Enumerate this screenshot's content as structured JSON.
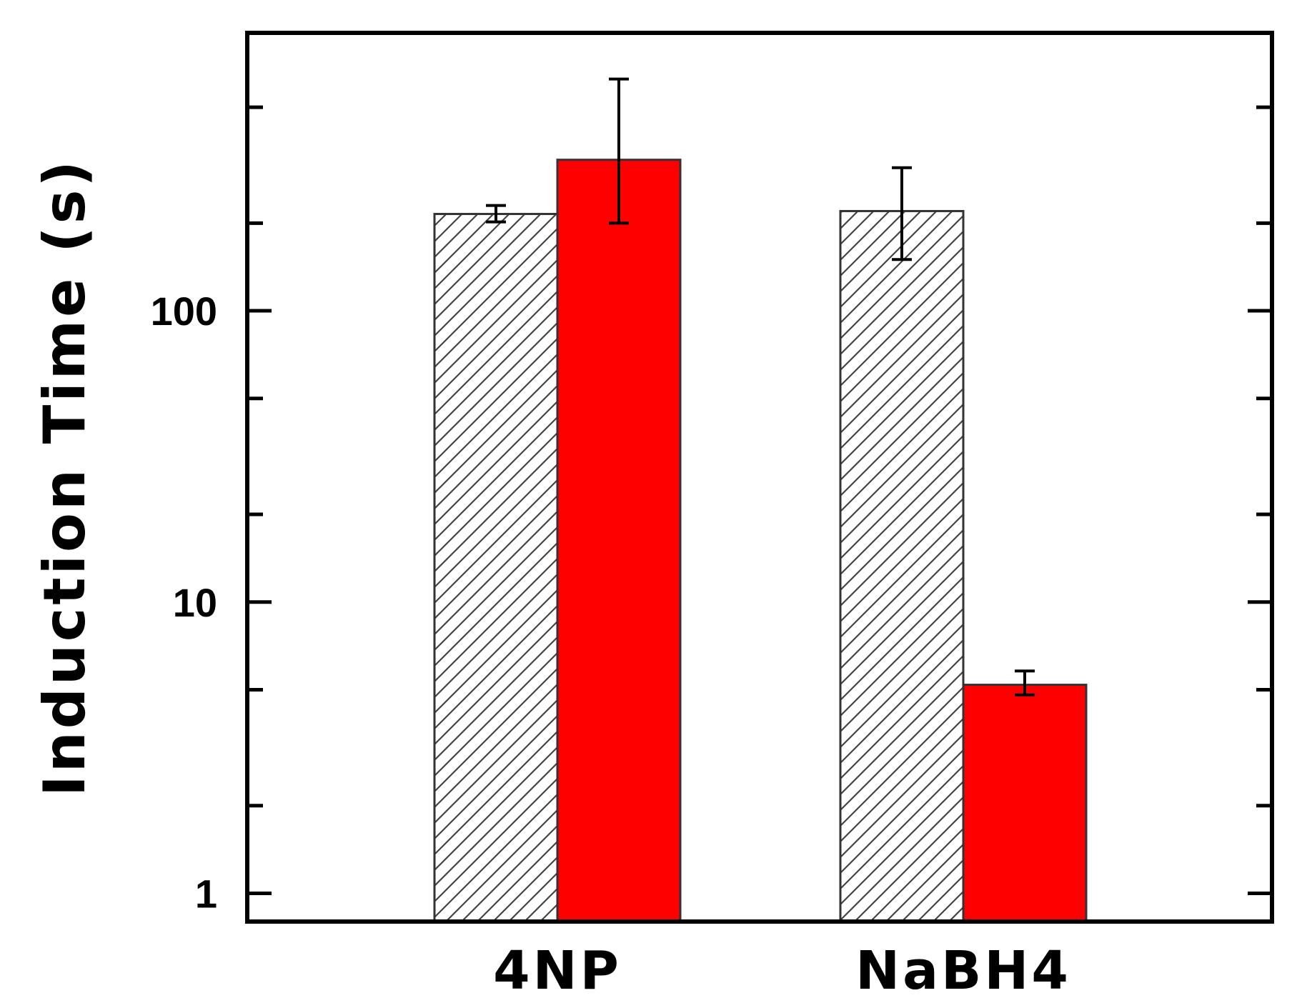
{
  "chart_data": {
    "type": "bar",
    "title": "",
    "xlabel": "",
    "ylabel": "Induction Time (s)",
    "y_scale": "log",
    "ylim": [
      0.8,
      900
    ],
    "y_ticks": [
      1,
      10,
      100
    ],
    "y_tick_labels": [
      "1",
      "10",
      "100"
    ],
    "categories": [
      "4NP",
      "NaBH4"
    ],
    "grid": false,
    "legend": "none",
    "series": [
      {
        "fill": "hatched",
        "color": "#ffffff",
        "edge_color": "#333333",
        "values": [
          215,
          220
        ],
        "error_low": [
          202,
          150
        ],
        "error_high": [
          230,
          310
        ]
      },
      {
        "fill": "solid",
        "color": "#ff0000",
        "edge_color": "#333333",
        "values": [
          330,
          5.2
        ],
        "error_low": [
          200,
          4.8
        ],
        "error_high": [
          625,
          5.8
        ]
      }
    ]
  }
}
